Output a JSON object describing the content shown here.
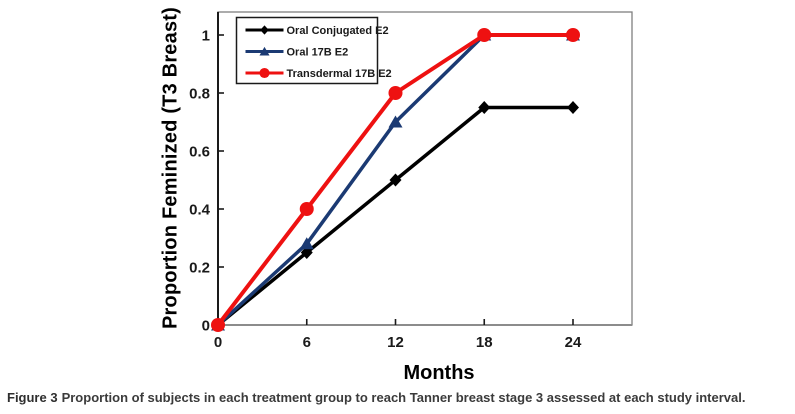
{
  "figure": {
    "caption_label": "Figure 3",
    "caption_text": "Proportion of subjects in each treatment group to reach Tanner breast stage 3 assessed at each study interval.",
    "background_color": "#ffffff"
  },
  "chart_data": {
    "type": "line",
    "title": "",
    "xlabel": "Months",
    "ylabel": "Proportion Feminized (T3 Breast)",
    "x": [
      0,
      6,
      12,
      18,
      24
    ],
    "x_tick_labels": [
      "0",
      "6",
      "12",
      "18",
      "24"
    ],
    "y_ticks": [
      0,
      0.2,
      0.4,
      0.6,
      0.8,
      1
    ],
    "y_tick_labels": [
      "0",
      "0.2",
      "0.4",
      "0.6",
      "0.8",
      "1"
    ],
    "xlim": [
      0,
      28
    ],
    "ylim": [
      0,
      1.08
    ],
    "grid": false,
    "legend_position": "top-left",
    "axis_colors": {
      "frame": "#7f7f7f",
      "y_axis": "#1a1a1a",
      "x_axis": "#8c8c8c",
      "tick": "#1a1a1a"
    },
    "series": [
      {
        "name": "Oral Conjugated E2",
        "color": "#000000",
        "marker": "diamond",
        "line_width": 3.5,
        "values": [
          0,
          0.25,
          0.5,
          0.75,
          0.75
        ]
      },
      {
        "name": "Oral 17B E2",
        "color": "#1b3a73",
        "marker": "triangle",
        "line_width": 3.5,
        "values": [
          0,
          0.28,
          0.7,
          1.0,
          1.0
        ]
      },
      {
        "name": "Transdermal 17B E2",
        "color": "#ee1111",
        "marker": "circle",
        "line_width": 4,
        "values": [
          0,
          0.4,
          0.8,
          1.0,
          1.0
        ]
      }
    ]
  }
}
